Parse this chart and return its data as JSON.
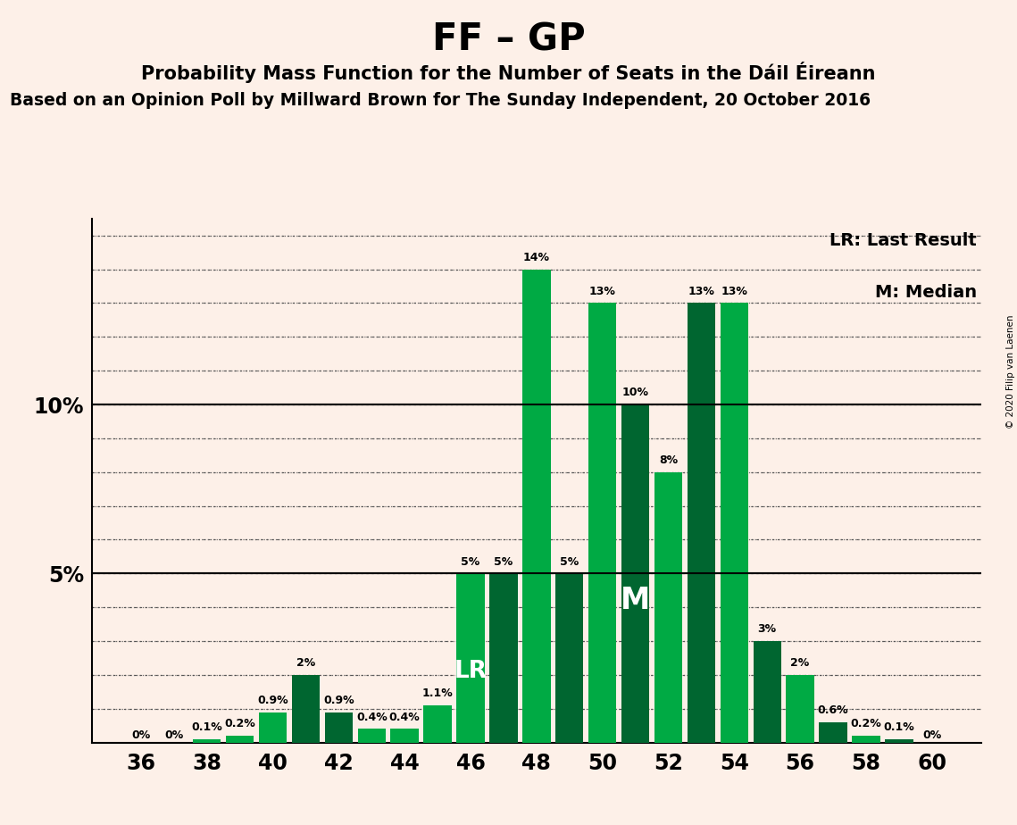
{
  "title": "FF – GP",
  "subtitle1": "Probability Mass Function for the Number of Seats in the Dáil Éireann",
  "subtitle2": "Based on an Opinion Poll by Millward Brown for The Sunday Independent, 20 October 2016",
  "copyright": "© 2020 Filip van Laenen",
  "seats": [
    36,
    37,
    38,
    39,
    40,
    41,
    42,
    43,
    44,
    45,
    46,
    47,
    48,
    49,
    50,
    51,
    52,
    53,
    54,
    55,
    56,
    57,
    58,
    59,
    60
  ],
  "values": [
    0.0,
    0.0,
    0.1,
    0.2,
    0.9,
    2.0,
    0.9,
    0.4,
    0.4,
    1.1,
    5.0,
    5.0,
    14.0,
    5.0,
    13.0,
    10.0,
    8.0,
    13.0,
    13.0,
    3.0,
    2.0,
    0.6,
    0.2,
    0.1,
    0.0
  ],
  "labels": [
    "0%",
    "0%",
    "0.1%",
    "0.2%",
    "0.9%",
    "2%",
    "0.9%",
    "0.4%",
    "0.4%",
    "1.1%",
    "5%",
    "5%",
    "14%",
    "5%",
    "13%",
    "10%",
    "8%",
    "13%",
    "13%",
    "3%",
    "2%",
    "0.6%",
    "0.2%",
    "0.1%",
    "0%"
  ],
  "bar_colors": [
    "#00aa44",
    "#00aa44",
    "#00aa44",
    "#00aa44",
    "#00aa44",
    "#006630",
    "#006630",
    "#00aa44",
    "#00aa44",
    "#00aa44",
    "#00aa44",
    "#006630",
    "#00aa44",
    "#006630",
    "#00aa44",
    "#006630",
    "#00aa44",
    "#006630",
    "#00aa44",
    "#006630",
    "#00aa44",
    "#006630",
    "#00aa44",
    "#006630",
    "#00aa44"
  ],
  "lr_seat": 46,
  "median_seat": 51,
  "background_color": "#fdf0e8",
  "xtick_seats": [
    36,
    38,
    40,
    42,
    44,
    46,
    48,
    50,
    52,
    54,
    56,
    58,
    60
  ],
  "ylim_max": 15.5,
  "bar_width": 0.85
}
